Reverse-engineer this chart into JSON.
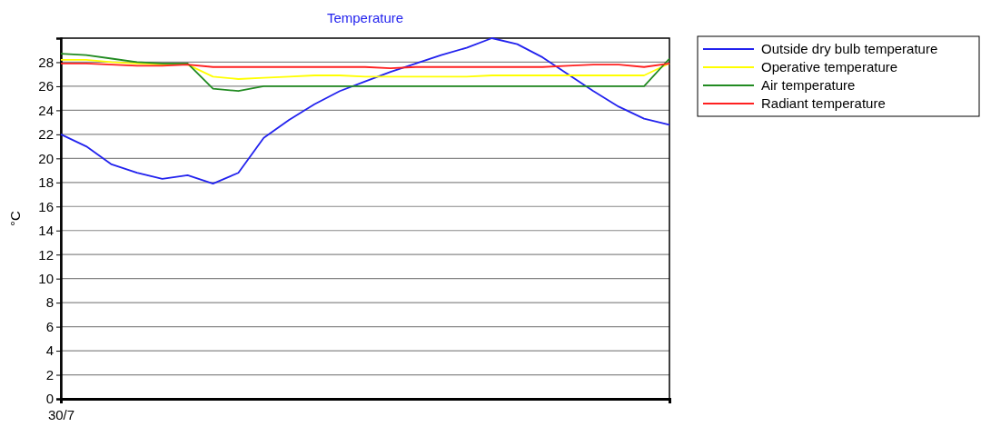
{
  "chart_data": {
    "type": "line",
    "title": "Temperature",
    "ylabel": "°C",
    "categories": [
      "30/7",
      null,
      null,
      null,
      null,
      null,
      null,
      null,
      null,
      null,
      null,
      null,
      null,
      null,
      null,
      null,
      null,
      null,
      null,
      null,
      null,
      null,
      null,
      null,
      null
    ],
    "ylim": [
      0,
      30
    ],
    "yticks": [
      0,
      2,
      4,
      6,
      8,
      10,
      12,
      14,
      16,
      18,
      20,
      22,
      24,
      26,
      28
    ],
    "grid": "y",
    "legend": "top right",
    "marker": "none",
    "line_style": "solid",
    "series": [
      {
        "name": "Outside dry bulb temperature",
        "color": "#2222ee",
        "values": [
          22,
          21,
          19.5,
          18.8,
          18.3,
          18.6,
          17.9,
          18.8,
          21.7,
          23.2,
          24.5,
          25.6,
          26.4,
          27.2,
          27.9,
          28.6,
          29.2,
          30,
          29.5,
          28.4,
          27,
          25.6,
          24.3,
          23.3,
          22.8
        ]
      },
      {
        "name": "Operative temperature",
        "color": "#ffff00",
        "values": [
          28.2,
          28.2,
          28,
          27.9,
          27.8,
          27.8,
          26.8,
          26.6,
          26.7,
          26.8,
          26.9,
          26.9,
          26.8,
          26.8,
          26.8,
          26.8,
          26.8,
          26.9,
          26.9,
          26.9,
          26.9,
          26.9,
          26.9,
          26.9,
          27.9
        ]
      },
      {
        "name": "Air temperature",
        "color": "#228b22",
        "values": [
          28.7,
          28.6,
          28.3,
          28,
          27.9,
          27.9,
          25.8,
          25.6,
          26,
          26,
          26,
          26,
          26,
          26,
          26,
          26,
          26,
          26,
          26,
          26,
          26,
          26,
          26,
          26,
          28.3
        ]
      },
      {
        "name": "Radiant temperature",
        "color": "#ff2020",
        "values": [
          27.9,
          27.9,
          27.8,
          27.7,
          27.7,
          27.8,
          27.6,
          27.6,
          27.6,
          27.6,
          27.6,
          27.6,
          27.6,
          27.5,
          27.6,
          27.6,
          27.6,
          27.6,
          27.6,
          27.6,
          27.7,
          27.8,
          27.8,
          27.6,
          27.9
        ]
      }
    ]
  }
}
